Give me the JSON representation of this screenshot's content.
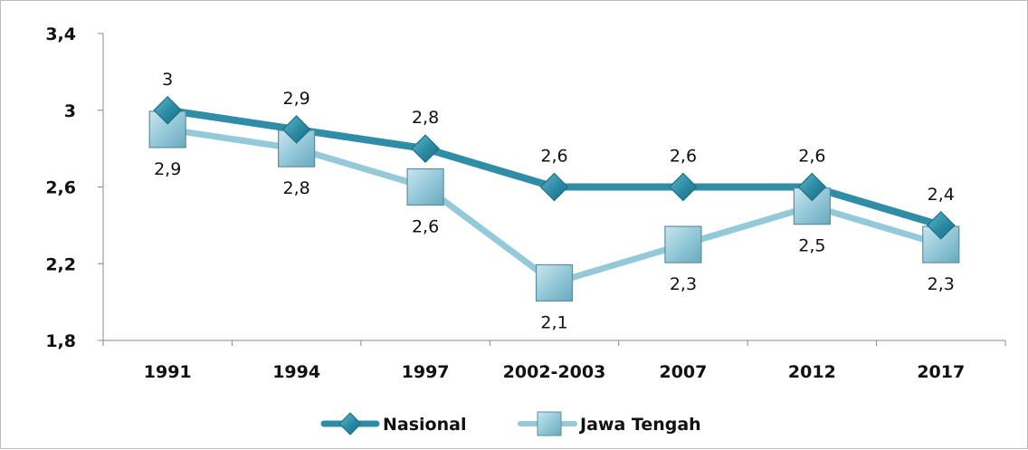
{
  "chart_data": {
    "type": "line",
    "title": "",
    "xlabel": "",
    "ylabel": "",
    "categories": [
      "1991",
      "1994",
      "1997",
      "2002-2003",
      "2007",
      "2012",
      "2017"
    ],
    "ylim": [
      1.8,
      3.4
    ],
    "yticks": [
      "1,8",
      "2,2",
      "2,6",
      "3",
      "3,4"
    ],
    "ytick_values": [
      1.8,
      2.2,
      2.6,
      3.0,
      3.4
    ],
    "grid": false,
    "legend_position": "bottom",
    "series": [
      {
        "name": "Nasional",
        "marker": "diamond",
        "color": "#2f8ea6",
        "values": [
          3.0,
          2.9,
          2.8,
          2.6,
          2.6,
          2.6,
          2.4
        ],
        "labels": [
          "3",
          "2,9",
          "2,8",
          "2,6",
          "2,6",
          "2,6",
          "2,4"
        ],
        "label_position": "above"
      },
      {
        "name": "Jawa Tengah",
        "marker": "square",
        "color": "#93c9d9",
        "values": [
          2.9,
          2.8,
          2.6,
          2.1,
          2.3,
          2.5,
          2.3
        ],
        "labels": [
          "2,9",
          "2,8",
          "2,6",
          "2,1",
          "2,3",
          "2,5",
          "2,3"
        ],
        "label_position": "below"
      }
    ]
  }
}
